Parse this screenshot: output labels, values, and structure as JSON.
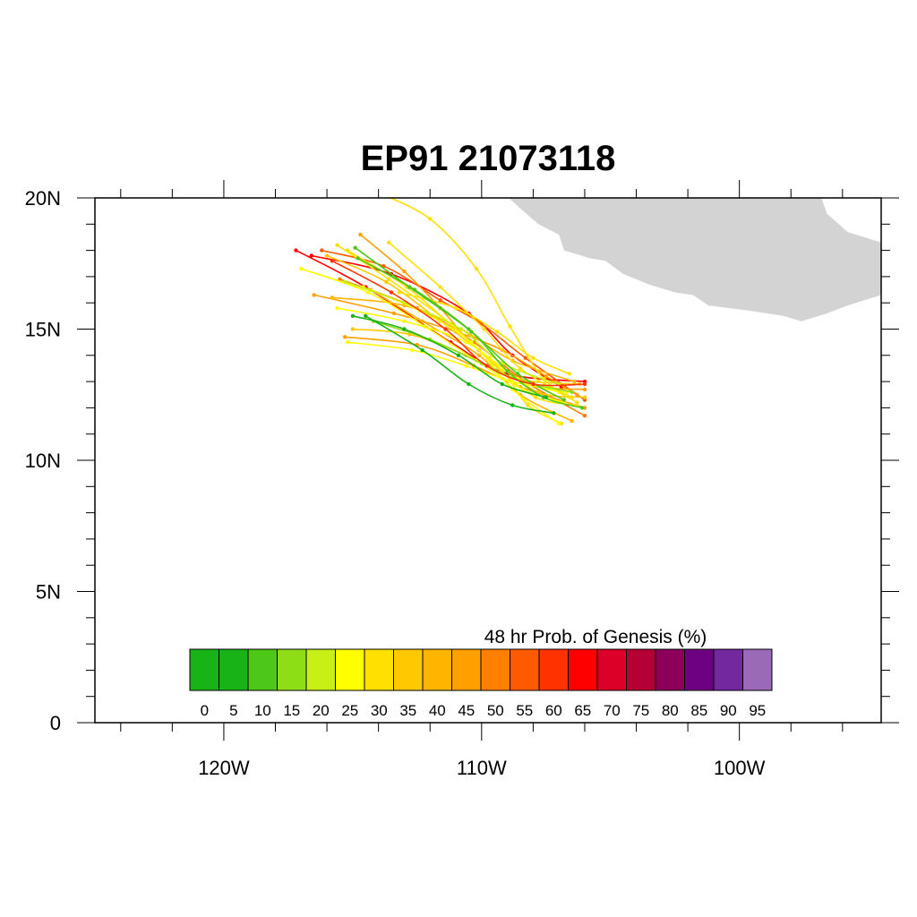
{
  "title": "EP91 21073118",
  "axes": {
    "lon_min": -125,
    "lon_max": -94.5,
    "lat_min": 0,
    "lat_max": 20,
    "lat_labels": [
      "0",
      "5N",
      "10N",
      "15N",
      "20N"
    ],
    "lat_label_values": [
      0,
      5,
      10,
      15,
      20
    ],
    "lon_labels": [
      "120W",
      "110W",
      "100W"
    ],
    "lon_label_values": [
      -120,
      -110,
      -100
    ]
  },
  "land_color": "#d3d3d3",
  "colorbar": {
    "title": "48 hr Prob. of Genesis (%)",
    "labels": [
      "0",
      "5",
      "10",
      "15",
      "20",
      "25",
      "30",
      "35",
      "40",
      "45",
      "50",
      "55",
      "60",
      "65",
      "70",
      "75",
      "80",
      "85",
      "90",
      "95"
    ],
    "colors": [
      "#17b317",
      "#17b317",
      "#4ec817",
      "#8fdd17",
      "#c8f017",
      "#ffff00",
      "#ffe000",
      "#ffc800",
      "#ffb400",
      "#ffa000",
      "#ff7f00",
      "#ff5a00",
      "#ff3200",
      "#ff0000",
      "#dc0028",
      "#b40032",
      "#8c005a",
      "#6e0082",
      "#7328a0",
      "#9a6ab8"
    ]
  },
  "land": [
    [
      [
        -109.5,
        20.5
      ],
      [
        -108.5,
        19.6
      ],
      [
        -107.8,
        19.0
      ],
      [
        -107.0,
        18.6
      ],
      [
        -106.8,
        18.0
      ],
      [
        -105.8,
        17.7
      ],
      [
        -105.2,
        17.6
      ],
      [
        -104.5,
        17.1
      ],
      [
        -103.5,
        16.7
      ],
      [
        -102.5,
        16.4
      ],
      [
        -101.8,
        16.3
      ],
      [
        -101.2,
        15.9
      ],
      [
        -99.6,
        15.7
      ],
      [
        -98.3,
        15.5
      ],
      [
        -97.6,
        15.3
      ],
      [
        -96.6,
        15.6
      ],
      [
        -95.8,
        15.9
      ],
      [
        -94.5,
        16.3
      ],
      [
        -94.5,
        18.3
      ],
      [
        -95.8,
        18.7
      ],
      [
        -96.6,
        19.4
      ],
      [
        -97.0,
        20.5
      ]
    ]
  ],
  "tracks": [
    {
      "color": "#ff0000",
      "points": [
        [
          -117.2,
          18.0
        ],
        [
          -114.5,
          16.6
        ],
        [
          -111.2,
          14.5
        ],
        [
          -109.0,
          13.3
        ],
        [
          -106.0,
          13.0
        ]
      ]
    },
    {
      "color": "#ff0000",
      "points": [
        [
          -116.6,
          17.8
        ],
        [
          -113.5,
          17.1
        ],
        [
          -110.5,
          15.6
        ],
        [
          -108.8,
          14.0
        ],
        [
          -106.9,
          12.8
        ]
      ]
    },
    {
      "color": "#ff5a00",
      "points": [
        [
          -116.2,
          18.0
        ],
        [
          -113.8,
          17.4
        ],
        [
          -111.6,
          16.1
        ],
        [
          -110.0,
          15.2
        ],
        [
          -108.3,
          13.9
        ],
        [
          -106.0,
          12.3
        ]
      ]
    },
    {
      "color": "#ff7f00",
      "points": [
        [
          -115.5,
          16.9
        ],
        [
          -112.5,
          15.8
        ],
        [
          -110.3,
          14.5
        ],
        [
          -108.3,
          13.0
        ],
        [
          -106.0,
          11.7
        ]
      ]
    },
    {
      "color": "#ffa000",
      "points": [
        [
          -114.7,
          18.6
        ],
        [
          -113.0,
          17.2
        ],
        [
          -111.6,
          15.8
        ],
        [
          -110.1,
          14.2
        ],
        [
          -108.0,
          12.9
        ],
        [
          -106.0,
          12.7
        ]
      ]
    },
    {
      "color": "#ffa000",
      "points": [
        [
          -116.5,
          16.3
        ],
        [
          -113.4,
          15.6
        ],
        [
          -111.0,
          14.9
        ],
        [
          -109.2,
          14.2
        ],
        [
          -107.5,
          13.2
        ],
        [
          -106.3,
          12.5
        ]
      ]
    },
    {
      "color": "#ffa000",
      "points": [
        [
          -115.3,
          14.7
        ],
        [
          -112.5,
          14.4
        ],
        [
          -110.3,
          13.6
        ],
        [
          -108.5,
          12.8
        ],
        [
          -106.0,
          12.0
        ]
      ]
    },
    {
      "color": "#ffb400",
      "points": [
        [
          -115.8,
          16.2
        ],
        [
          -113.0,
          15.9
        ],
        [
          -110.8,
          15.0
        ],
        [
          -108.8,
          13.8
        ],
        [
          -106.4,
          13.0
        ]
      ]
    },
    {
      "color": "#ffb400",
      "points": [
        [
          -114.3,
          16.5
        ],
        [
          -112.3,
          15.3
        ],
        [
          -110.1,
          14.0
        ],
        [
          -108.5,
          12.5
        ],
        [
          -106.5,
          11.5
        ]
      ]
    },
    {
      "color": "#ffc800",
      "points": [
        [
          -116.0,
          17.8
        ],
        [
          -113.7,
          16.8
        ],
        [
          -111.6,
          15.3
        ],
        [
          -109.7,
          13.9
        ],
        [
          -107.8,
          12.6
        ],
        [
          -106.0,
          12.4
        ]
      ]
    },
    {
      "color": "#ffc800",
      "points": [
        [
          -115.0,
          15.0
        ],
        [
          -112.8,
          14.8
        ],
        [
          -110.6,
          14.0
        ],
        [
          -108.6,
          13.1
        ],
        [
          -106.2,
          12.9
        ]
      ]
    },
    {
      "color": "#ffe000",
      "points": [
        [
          -115.6,
          18.2
        ],
        [
          -113.6,
          16.9
        ],
        [
          -111.2,
          15.2
        ],
        [
          -109.6,
          13.7
        ],
        [
          -107.9,
          12.4
        ],
        [
          -106.3,
          12.1
        ]
      ]
    },
    {
      "color": "#ffe000",
      "points": [
        [
          -115.2,
          18.0
        ],
        [
          -112.9,
          16.6
        ],
        [
          -110.9,
          14.9
        ],
        [
          -109.2,
          13.4
        ],
        [
          -108.2,
          12.1
        ],
        [
          -106.9,
          11.4
        ]
      ]
    },
    {
      "color": "#ffe000",
      "points": [
        [
          -113.2,
          16.4
        ],
        [
          -111.0,
          15.8
        ],
        [
          -109.4,
          14.9
        ],
        [
          -108.0,
          13.9
        ],
        [
          -106.6,
          13.3
        ]
      ]
    },
    {
      "color": "#ffe000",
      "points": [
        [
          -113.6,
          18.3
        ],
        [
          -111.6,
          16.6
        ],
        [
          -109.9,
          15.0
        ],
        [
          -108.5,
          13.5
        ],
        [
          -106.3,
          12.2
        ]
      ]
    },
    {
      "color": "#ffff00",
      "points": [
        [
          -115.6,
          15.8
        ],
        [
          -113.0,
          15.3
        ],
        [
          -110.6,
          14.5
        ],
        [
          -108.6,
          13.1
        ],
        [
          -107.0,
          12.6
        ]
      ]
    },
    {
      "color": "#ffff00",
      "points": [
        [
          -115.2,
          14.5
        ],
        [
          -112.7,
          14.2
        ],
        [
          -110.6,
          13.6
        ],
        [
          -108.8,
          13.0
        ],
        [
          -106.7,
          12.6
        ]
      ]
    },
    {
      "color": "#ffff00",
      "points": [
        [
          -114.6,
          16.6
        ],
        [
          -112.4,
          15.7
        ],
        [
          -110.4,
          14.5
        ],
        [
          -108.8,
          12.7
        ],
        [
          -107.0,
          11.4
        ]
      ]
    },
    {
      "color": "#ffff00",
      "points": [
        [
          -117.0,
          17.3
        ],
        [
          -114.4,
          16.4
        ],
        [
          -112.2,
          15.1
        ],
        [
          -110.2,
          13.8
        ],
        [
          -108.4,
          12.7
        ],
        [
          -106.8,
          12.2
        ]
      ]
    },
    {
      "color": "#ffe000",
      "points": [
        [
          -114.0,
          20.2
        ],
        [
          -112.0,
          19.2
        ],
        [
          -110.2,
          17.3
        ],
        [
          -108.9,
          15.1
        ],
        [
          -107.6,
          13.1
        ],
        [
          -106.5,
          12.4
        ]
      ]
    },
    {
      "color": "#c8f017",
      "points": [
        [
          -115.3,
          16.8
        ],
        [
          -113.0,
          16.0
        ],
        [
          -110.8,
          15.0
        ],
        [
          -109.2,
          13.7
        ],
        [
          -107.0,
          12.9
        ]
      ]
    },
    {
      "color": "#8fdd17",
      "points": [
        [
          -114.2,
          15.3
        ],
        [
          -112.0,
          14.6
        ],
        [
          -110.0,
          13.7
        ],
        [
          -108.4,
          13.0
        ],
        [
          -106.5,
          12.6
        ]
      ]
    },
    {
      "color": "#4ec817",
      "points": [
        [
          -114.9,
          18.1
        ],
        [
          -112.8,
          16.6
        ],
        [
          -110.4,
          14.9
        ],
        [
          -109.0,
          13.4
        ],
        [
          -107.6,
          12.4
        ],
        [
          -106.1,
          12.0
        ]
      ]
    },
    {
      "color": "#4ec817",
      "points": [
        [
          -114.8,
          17.7
        ],
        [
          -112.6,
          16.5
        ],
        [
          -110.5,
          15.0
        ],
        [
          -108.6,
          13.3
        ],
        [
          -106.8,
          12.3
        ]
      ]
    },
    {
      "color": "#17b317",
      "points": [
        [
          -114.5,
          15.5
        ],
        [
          -112.3,
          14.2
        ],
        [
          -110.5,
          12.9
        ],
        [
          -108.8,
          12.1
        ],
        [
          -107.2,
          11.8
        ]
      ]
    },
    {
      "color": "#17b317",
      "points": [
        [
          -115.0,
          15.5
        ],
        [
          -113.0,
          15.0
        ],
        [
          -110.9,
          14.0
        ],
        [
          -109.2,
          12.9
        ],
        [
          -107.5,
          12.4
        ]
      ]
    },
    {
      "color": "#ff3200",
      "points": [
        [
          -115.8,
          17.6
        ],
        [
          -113.5,
          16.4
        ],
        [
          -111.4,
          15.0
        ],
        [
          -109.8,
          13.6
        ],
        [
          -108.0,
          12.9
        ],
        [
          -106.0,
          12.9
        ]
      ]
    }
  ]
}
